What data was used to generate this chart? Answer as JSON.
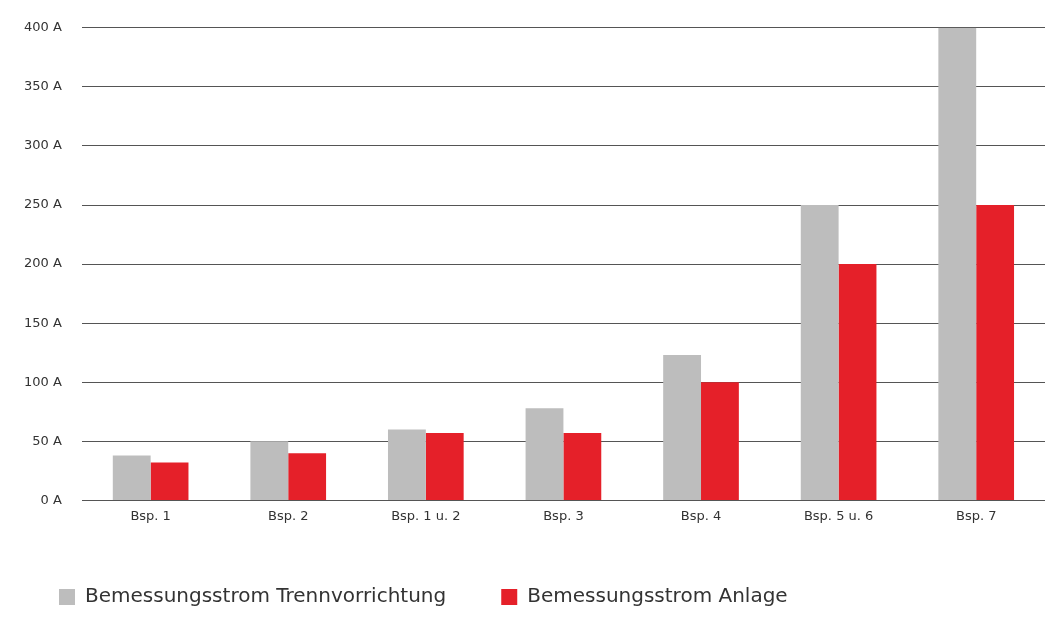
{
  "chart_data": {
    "type": "bar",
    "categories": [
      "Bsp. 1",
      "Bsp. 2",
      "Bsp. 1 u. 2",
      "Bsp. 3",
      "Bsp. 4",
      "Bsp. 5 u. 6",
      "Bsp. 7"
    ],
    "series": [
      {
        "name": "Bemessungsstrom Trennvorrichtung",
        "color": "#bdbdbd",
        "values": [
          38,
          50,
          60,
          78,
          123,
          250,
          400
        ]
      },
      {
        "name": "Bemessungsstrom Anlage",
        "color": "#e52029",
        "values": [
          32,
          40,
          57,
          57,
          100,
          200,
          250
        ]
      }
    ],
    "ylim": [
      0,
      400
    ],
    "yticks": [
      {
        "value": 0,
        "label": "0 A"
      },
      {
        "value": 50,
        "label": "50 A"
      },
      {
        "value": 100,
        "label": "100 A"
      },
      {
        "value": 150,
        "label": "150 A"
      },
      {
        "value": 200,
        "label": "200 A"
      },
      {
        "value": 250,
        "label": "250 A"
      },
      {
        "value": 300,
        "label": "300 A"
      },
      {
        "value": 350,
        "label": "350 A"
      },
      {
        "value": 400,
        "label": "400 A"
      }
    ],
    "grid": "y",
    "legend": "bottom"
  }
}
